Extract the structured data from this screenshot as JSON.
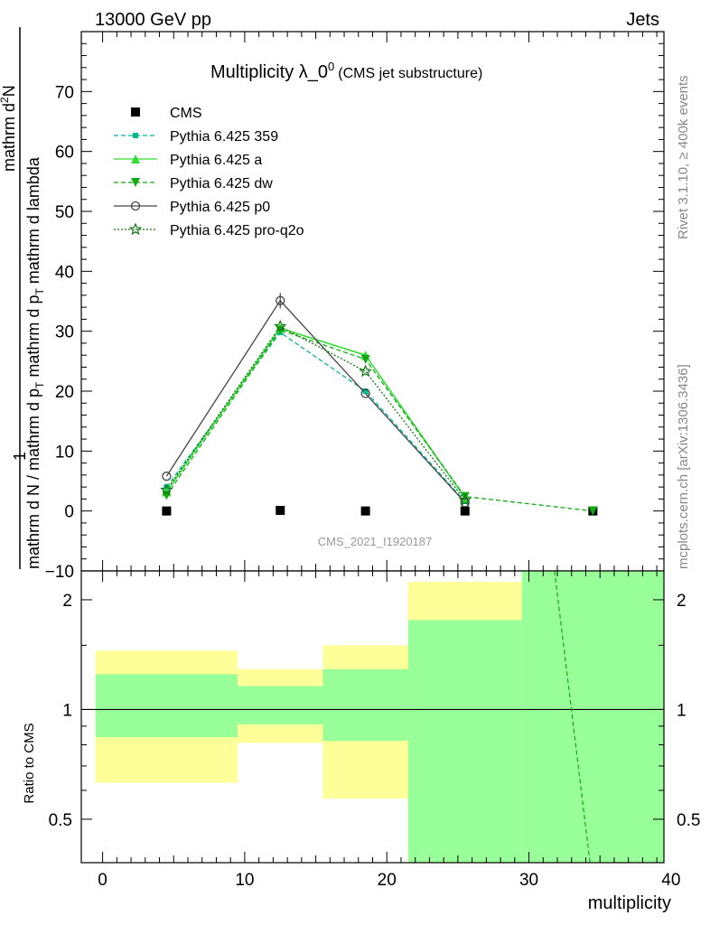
{
  "header": {
    "left": "13000 GeV pp",
    "right": "Jets"
  },
  "side_labels": {
    "rivet": "Rivet 3.1.10, ≥ 400k events",
    "mcplots": "mcplots.cern.ch [arXiv:1306.3436]"
  },
  "colors": {
    "cms": "#000000",
    "pythia_359": "#00b894",
    "pythia_a": "#33dd33",
    "pythia_dw": "#11aa11",
    "pythia_p0": "#444444",
    "pythia_pro_q2o": "#117711",
    "band_yellow": "#ffff99",
    "band_green": "#99ff99"
  },
  "chart_data": [
    {
      "type": "line",
      "title": "Multiplicity λ_0",
      "title_sup": "0",
      "title_suffix": "(CMS jet substructure)",
      "watermark": "CMS_2021_I1920187",
      "ylabel_numerator": "mathrm d^2N",
      "ylabel_numerator_sup": "2",
      "ylabel_numerator_text": "mathrm d",
      "ylabel_numerator_end": "N",
      "ylabel_prefix": "1",
      "ylabel_denominator": "mathrm d N / mathrm d p_T mathrm d p_T mathrm d lambda",
      "ylabel_num_line": "mathrm d N",
      "ylabel_den_a": "mathrm d N / mathrm d p",
      "ylabel_den_b": "mathrm d p",
      "ylabel_den_c": "mathrm d lambda",
      "ylabel_sub": "T",
      "xlim": [
        -1.5,
        39.5
      ],
      "ylim": [
        -10,
        80
      ],
      "yticks": [
        -10,
        0,
        10,
        20,
        30,
        40,
        50,
        60,
        70
      ],
      "ytick_labels": [
        "−10",
        "0",
        "10",
        "20",
        "30",
        "40",
        "50",
        "60",
        "70"
      ],
      "legend_position": "top-left",
      "series": [
        {
          "name": "CMS",
          "key": "cms",
          "marker": "square",
          "line": "none",
          "points": [
            [
              4.5,
              0
            ],
            [
              12.5,
              0.1
            ],
            [
              18.5,
              0
            ],
            [
              25.5,
              0
            ],
            [
              34.5,
              0
            ]
          ]
        },
        {
          "name": "Pythia 6.425 359",
          "key": "pythia_359",
          "marker": "small-square",
          "line": "dashed",
          "points": [
            [
              4.5,
              4
            ],
            [
              12.5,
              29.8
            ],
            [
              18.5,
              20
            ],
            [
              25.5,
              1.6
            ]
          ]
        },
        {
          "name": "Pythia 6.425 a",
          "key": "pythia_a",
          "marker": "triangle-up",
          "line": "solid",
          "points": [
            [
              4.5,
              3.2
            ],
            [
              12.5,
              30.5
            ],
            [
              18.5,
              26
            ],
            [
              25.5,
              2.2
            ]
          ]
        },
        {
          "name": "Pythia 6.425 dw",
          "key": "pythia_dw",
          "marker": "triangle-down",
          "line": "dashed",
          "points": [
            [
              4.5,
              2.6
            ],
            [
              12.5,
              30.2
            ],
            [
              18.5,
              25.3
            ],
            [
              25.5,
              2.4
            ],
            [
              34.5,
              0
            ]
          ]
        },
        {
          "name": "Pythia 6.425 p0",
          "key": "pythia_p0",
          "marker": "open-circle",
          "line": "solid",
          "points": [
            [
              4.5,
              5.8
            ],
            [
              12.5,
              35.1
            ],
            [
              18.5,
              19.6
            ],
            [
              25.5,
              1.4
            ]
          ]
        },
        {
          "name": "Pythia 6.425 pro-q2o",
          "key": "pythia_pro_q2o",
          "marker": "open-star",
          "line": "dotted",
          "points": [
            [
              4.5,
              3.5
            ],
            [
              12.5,
              30.8
            ],
            [
              18.5,
              23.3
            ],
            [
              25.5,
              1.8
            ]
          ]
        }
      ]
    },
    {
      "type": "area",
      "ylabel": "Ratio to CMS",
      "xlabel": "multiplicity",
      "xlim": [
        -1.5,
        39.5
      ],
      "ylim": [
        0.38,
        2.4
      ],
      "yscale": "log",
      "xticks": [
        0,
        10,
        20,
        30,
        40
      ],
      "yticks": [
        0.5,
        1,
        2
      ],
      "ytick_labels": [
        "0.5",
        "1",
        "2"
      ],
      "bins": [
        {
          "x0": -0.5,
          "x1": 9.5,
          "yellow": [
            0.63,
            1.45
          ],
          "green": [
            0.84,
            1.25
          ]
        },
        {
          "x0": 9.5,
          "x1": 15.5,
          "yellow": [
            0.81,
            1.29
          ],
          "green": [
            0.91,
            1.16
          ]
        },
        {
          "x0": 15.5,
          "x1": 21.5,
          "yellow": [
            0.57,
            1.5
          ],
          "green": [
            0.82,
            1.29
          ]
        },
        {
          "x0": 21.5,
          "x1": 29.5,
          "yellow": [
            0.38,
            2.24
          ],
          "green": [
            0.38,
            1.76
          ]
        },
        {
          "x0": 29.5,
          "x1": 39.5,
          "yellow": [
            0.38,
            2.4
          ],
          "green": [
            0.38,
            2.4
          ]
        }
      ],
      "reference": 1,
      "dw_ratio_line": [
        [
          31.8,
          2.4
        ],
        [
          34.3,
          0.38
        ]
      ]
    }
  ]
}
